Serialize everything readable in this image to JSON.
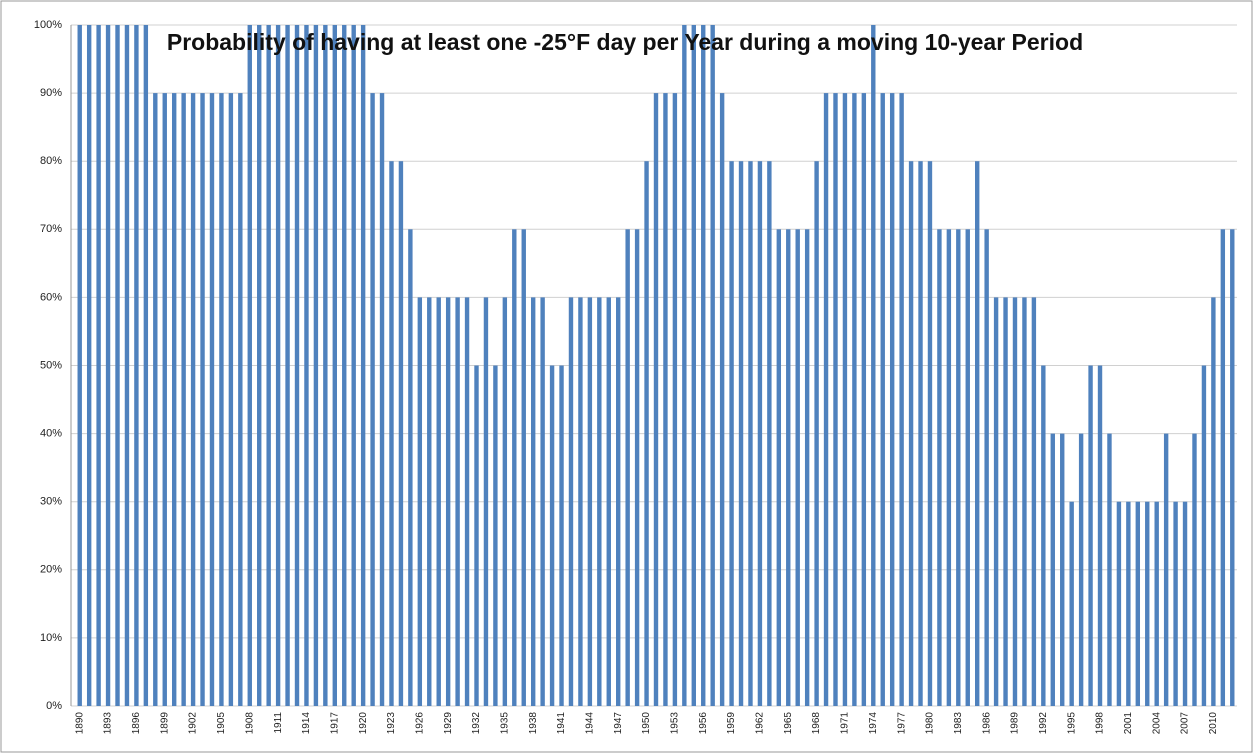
{
  "chart_data": {
    "type": "bar",
    "title": "Probability of having at least one -25°F day per Year during a moving 10-year Period",
    "categories": [
      "1890",
      null,
      null,
      "1893",
      null,
      null,
      "1896",
      null,
      null,
      "1899",
      null,
      null,
      "1902",
      null,
      null,
      "1905",
      null,
      null,
      "1908",
      null,
      null,
      "1911",
      null,
      null,
      "1914",
      null,
      null,
      "1917",
      null,
      null,
      "1920",
      null,
      null,
      "1923",
      null,
      null,
      "1926",
      null,
      null,
      "1929",
      null,
      null,
      "1932",
      null,
      null,
      "1935",
      null,
      null,
      "1938",
      null,
      null,
      "1941",
      null,
      null,
      "1944",
      null,
      null,
      "1947",
      null,
      null,
      "1950",
      null,
      null,
      "1953",
      null,
      null,
      "1956",
      null,
      null,
      "1959",
      null,
      null,
      "1962",
      null,
      null,
      "1965",
      null,
      null,
      "1968",
      null,
      null,
      "1971",
      null,
      null,
      "1974",
      null,
      null,
      "1977",
      null,
      null,
      "1980",
      null,
      null,
      "1983",
      null,
      null,
      "1986",
      null,
      null,
      "1989",
      null,
      null,
      "1992",
      null,
      null,
      "1995",
      null,
      null,
      "1998",
      null,
      null,
      "2001",
      null,
      null,
      "2004",
      null,
      null,
      "2007",
      null,
      null,
      "2010",
      null,
      null
    ],
    "values": [
      100,
      100,
      100,
      100,
      100,
      100,
      100,
      100,
      90,
      90,
      90,
      90,
      90,
      90,
      90,
      90,
      90,
      90,
      100,
      100,
      100,
      100,
      100,
      100,
      100,
      100,
      100,
      100,
      100,
      100,
      100,
      90,
      90,
      80,
      80,
      70,
      60,
      60,
      60,
      60,
      60,
      60,
      50,
      60,
      50,
      60,
      70,
      70,
      60,
      60,
      50,
      50,
      60,
      60,
      60,
      60,
      60,
      60,
      70,
      70,
      80,
      90,
      90,
      90,
      100,
      100,
      100,
      100,
      90,
      80,
      80,
      80,
      80,
      80,
      70,
      70,
      70,
      70,
      80,
      90,
      90,
      90,
      90,
      90,
      100,
      90,
      90,
      90,
      80,
      80,
      80,
      70,
      70,
      70,
      70,
      80,
      70,
      60,
      60,
      60,
      60,
      60,
      50,
      40,
      40,
      30,
      40,
      50,
      50,
      40,
      30,
      30,
      30,
      30,
      30,
      40,
      30,
      30,
      40,
      50,
      60,
      70,
      70
    ],
    "color": "#4f81bd",
    "ylim": [
      0,
      100
    ],
    "yticks": [
      {
        "value": 0,
        "label": "0%"
      },
      {
        "value": 10,
        "label": "10%"
      },
      {
        "value": 20,
        "label": "20%"
      },
      {
        "value": 30,
        "label": "30%"
      },
      {
        "value": 40,
        "label": "40%"
      },
      {
        "value": 50,
        "label": "50%"
      },
      {
        "value": 60,
        "label": "60%"
      },
      {
        "value": 70,
        "label": "70%"
      },
      {
        "value": 80,
        "label": "80%"
      },
      {
        "value": 90,
        "label": "90%"
      },
      {
        "value": 100,
        "label": "100%"
      }
    ],
    "grid": true
  }
}
